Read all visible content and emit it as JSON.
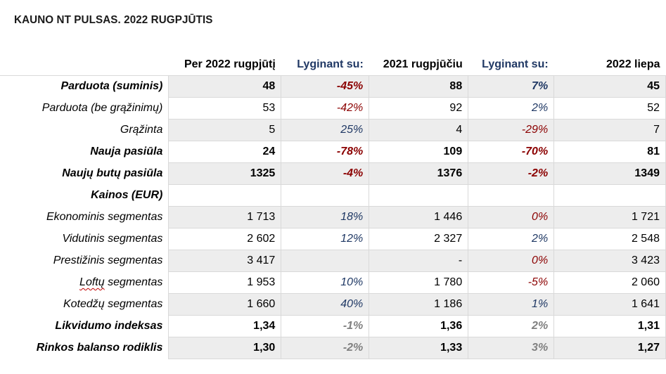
{
  "title": "KAUNO NT PULSAS. 2022 RUGPJŪTIS",
  "columns": [
    "Per 2022 rugpjūtį",
    "Lyginant su:",
    "2021 rugpjūčiu",
    "Lyginant su:",
    "2022 liepa"
  ],
  "rows": [
    {
      "label": "Parduota (suminis)",
      "bold": true,
      "shade": true,
      "values": [
        "48",
        "-45%",
        "88",
        "7%",
        "45"
      ],
      "tones": [
        "",
        "neg",
        "",
        "pos",
        ""
      ]
    },
    {
      "label": "Parduota (be grąžinimų)",
      "bold": false,
      "shade": false,
      "values": [
        "53",
        "-42%",
        "92",
        "2%",
        "52"
      ],
      "tones": [
        "",
        "neg",
        "",
        "pos",
        ""
      ]
    },
    {
      "label": "Grąžinta",
      "bold": false,
      "shade": true,
      "values": [
        "5",
        "25%",
        "4",
        "-29%",
        "7"
      ],
      "tones": [
        "",
        "pos",
        "",
        "neg",
        ""
      ]
    },
    {
      "label": "Nauja pasiūla",
      "bold": true,
      "shade": false,
      "values": [
        "24",
        "-78%",
        "109",
        "-70%",
        "81"
      ],
      "tones": [
        "",
        "neg",
        "",
        "neg",
        ""
      ]
    },
    {
      "label": "Naujų butų pasiūla",
      "bold": true,
      "shade": true,
      "values": [
        "1325",
        "-4%",
        "1376",
        "-2%",
        "1349"
      ],
      "tones": [
        "",
        "neg",
        "",
        "neg",
        ""
      ]
    },
    {
      "label": "Kainos (EUR)",
      "bold": true,
      "shade": false,
      "values": [
        "",
        "",
        "",
        "",
        ""
      ],
      "tones": [
        "",
        "",
        "",
        "",
        ""
      ]
    },
    {
      "label": "Ekonominis segmentas",
      "bold": false,
      "shade": true,
      "values": [
        "1 713",
        "18%",
        "1 446",
        "0%",
        "1 721"
      ],
      "tones": [
        "",
        "pos",
        "",
        "neg",
        ""
      ]
    },
    {
      "label": "Vidutinis segmentas",
      "bold": false,
      "shade": false,
      "values": [
        "2 602",
        "12%",
        "2 327",
        "2%",
        "2 548"
      ],
      "tones": [
        "",
        "pos",
        "",
        "pos",
        ""
      ]
    },
    {
      "label": "Prestižinis segmentas",
      "bold": false,
      "shade": true,
      "values": [
        "3 417",
        "",
        "-",
        "0%",
        "3 423"
      ],
      "tones": [
        "",
        "",
        "",
        "neg",
        ""
      ]
    },
    {
      "label": "Loftų segmentas",
      "bold": false,
      "shade": false,
      "squiggle": true,
      "values": [
        "1 953",
        "10%",
        "1 780",
        "-5%",
        "2 060"
      ],
      "tones": [
        "",
        "pos",
        "",
        "neg",
        ""
      ]
    },
    {
      "label": "Kotedžų segmentas",
      "bold": false,
      "shade": true,
      "values": [
        "1 660",
        "40%",
        "1 186",
        "1%",
        "1 641"
      ],
      "tones": [
        "",
        "pos",
        "",
        "pos",
        ""
      ]
    },
    {
      "label": "Likvidumo indeksas",
      "bold": true,
      "shade": false,
      "values": [
        "1,34",
        "-1%",
        "1,36",
        "2%",
        "1,31"
      ],
      "tones": [
        "",
        "gray",
        "",
        "gray",
        ""
      ]
    },
    {
      "label": "Rinkos balanso rodiklis",
      "bold": true,
      "shade": true,
      "values": [
        "1,30",
        "-2%",
        "1,33",
        "3%",
        "1,27"
      ],
      "tones": [
        "",
        "gray",
        "",
        "gray",
        ""
      ]
    }
  ]
}
